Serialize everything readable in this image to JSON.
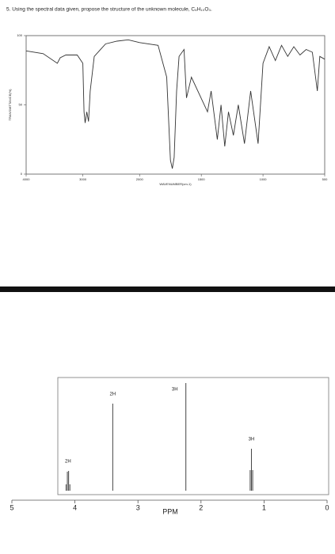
{
  "question": "5. Using the spectral data given, propose the structure of the unknown molecule, C₆H₁₀O₃.",
  "chart_data": [
    {
      "type": "line",
      "ylabel": "TRANSMITTANCE(%)",
      "xlabel": "WAVENUMBER(cm-1)",
      "x": [
        4000,
        3700,
        3450,
        3400,
        3300,
        3100,
        3000,
        2980,
        2960,
        2930,
        2900,
        2870,
        2800,
        2600,
        2400,
        2200,
        2000,
        1850,
        1780,
        1750,
        1735,
        1720,
        1700,
        1680,
        1640,
        1620,
        1580,
        1450,
        1420,
        1370,
        1340,
        1310,
        1280,
        1240,
        1200,
        1150,
        1100,
        1040,
        1000,
        950,
        900,
        850,
        800,
        750,
        700,
        650,
        600,
        560,
        540,
        500
      ],
      "values": [
        89,
        87,
        80,
        84,
        86,
        86,
        80,
        45,
        37,
        45,
        38,
        60,
        85,
        94,
        96,
        97,
        95,
        93,
        70,
        10,
        4,
        12,
        60,
        85,
        90,
        55,
        70,
        45,
        60,
        25,
        50,
        20,
        45,
        28,
        50,
        22,
        60,
        22,
        80,
        92,
        82,
        93,
        85,
        92,
        86,
        90,
        88,
        60,
        85,
        83
      ],
      "color": "#333333",
      "xlim": [
        4000,
        500
      ],
      "x_scale_break": 2000,
      "xticks": [
        4000,
        3000,
        2000,
        1500,
        1000,
        500
      ],
      "ylim": [
        0,
        100
      ],
      "yticks": [
        0,
        50,
        100
      ]
    },
    {
      "type": "nmr",
      "xlabel": "PPM",
      "xlim": [
        5,
        0
      ],
      "xticks": [
        5,
        4,
        3,
        2,
        1,
        0
      ],
      "ylim": [
        0,
        140
      ],
      "color": "#444444",
      "peaks": [
        {
          "label": "2H",
          "x": [
            4.14,
            4.12,
            4.1,
            4.08
          ],
          "values": [
            8,
            24,
            25,
            8
          ]
        },
        {
          "label": "2H",
          "x": [
            3.4
          ],
          "values": [
            110
          ]
        },
        {
          "label": "3H",
          "x": [
            2.24
          ],
          "values": [
            136
          ]
        },
        {
          "label": "3H",
          "x": [
            1.22,
            1.2,
            1.18
          ],
          "values": [
            26,
            53,
            26
          ]
        }
      ]
    }
  ]
}
